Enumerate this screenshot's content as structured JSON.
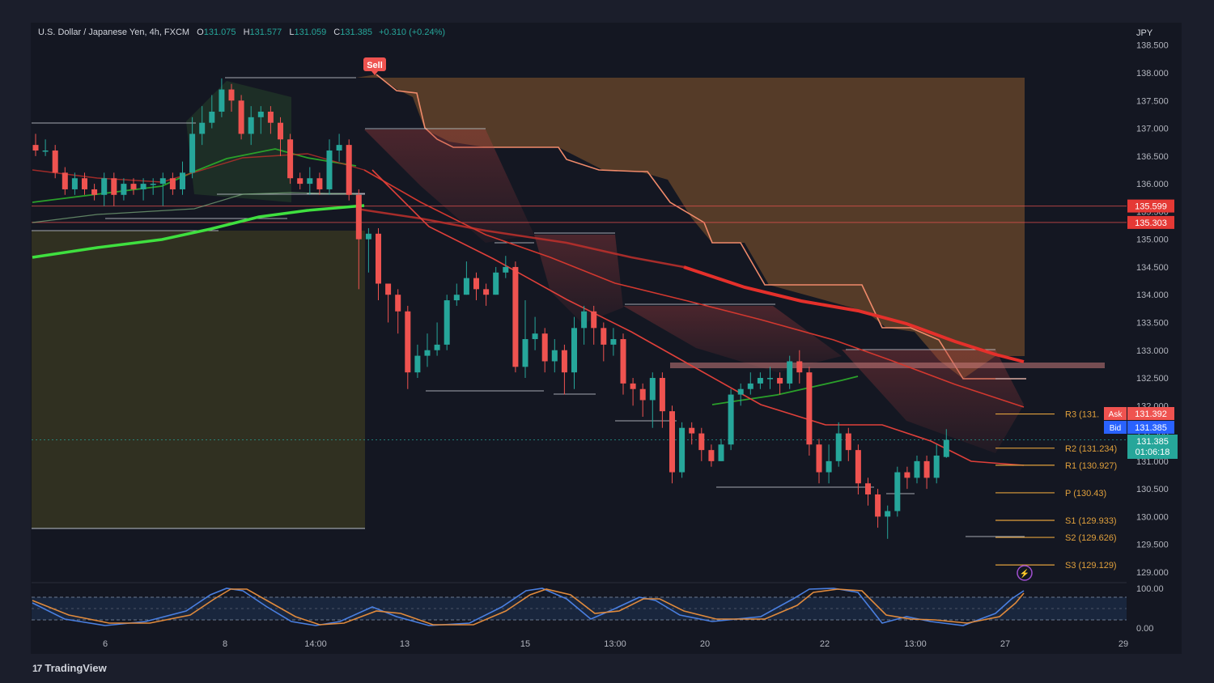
{
  "header": {
    "symbol": "U.S. Dollar / Japanese Yen, 4h, FXCM",
    "open_label": "O",
    "open": "131.075",
    "high_label": "H",
    "high": "131.577",
    "low_label": "L",
    "low": "131.059",
    "close_label": "C",
    "close": "131.385",
    "change": "+0.310 (+0.24%)"
  },
  "currency": "JPY",
  "brand": "TradingView",
  "sell_signal": "Sell",
  "price_tags": {
    "level1": "135.599",
    "level2": "135.303",
    "ask_label": "Ask",
    "ask": "131.392",
    "bid_label": "Bid",
    "bid": "131.385",
    "last": "131.385",
    "countdown": "01:06:18"
  },
  "pivots": [
    {
      "label": "R3 (131.",
      "value": 131.85
    },
    {
      "label": "R2 (131.234)",
      "value": 131.234
    },
    {
      "label": "R1 (130.927)",
      "value": 130.927
    },
    {
      "label": "P (130.43)",
      "value": 130.43
    },
    {
      "label": "S1 (129.933)",
      "value": 129.933
    },
    {
      "label": "S2 (129.626)",
      "value": 129.626
    },
    {
      "label": "S3 (129.129)",
      "value": 129.129
    }
  ],
  "colors": {
    "bull": "#26a69a",
    "bear": "#ef5350",
    "ema_green": "#3fe03f",
    "ema_red": "#e5302b",
    "cloud": "#8a5a2e",
    "pivot": "#e0a03c",
    "stoch_blue": "#4a7fe0",
    "stoch_orange": "#e08a3c"
  },
  "chart_data": {
    "type": "candlestick",
    "title": "U.S. Dollar / Japanese Yen, 4h, FXCM",
    "y_unit": "JPY",
    "ylim": [
      128.6,
      138.7
    ],
    "y_ticks": [
      "138.500",
      "138.000",
      "137.500",
      "137.000",
      "136.500",
      "136.000",
      "135.500",
      "135.000",
      "134.500",
      "134.000",
      "133.500",
      "133.000",
      "132.500",
      "132.000",
      "131.500",
      "131.000",
      "130.500",
      "130.000",
      "129.500",
      "129.000"
    ],
    "x_ticks": [
      "6",
      "8",
      "14:00",
      "13",
      "15",
      "13:00",
      "20",
      "22",
      "13:00",
      "27",
      "29"
    ],
    "candles": [
      [
        136.7,
        136.6,
        136.9,
        136.5
      ],
      [
        136.6,
        136.6,
        136.8,
        136.5
      ],
      [
        136.6,
        136.2,
        136.7,
        136.1
      ],
      [
        136.2,
        135.9,
        136.3,
        135.8
      ],
      [
        135.9,
        136.1,
        136.2,
        135.8
      ],
      [
        136.1,
        135.9,
        136.2,
        135.8
      ],
      [
        135.9,
        135.8,
        136.0,
        135.7
      ],
      [
        135.8,
        136.1,
        136.2,
        135.6
      ],
      [
        136.1,
        135.8,
        136.2,
        135.6
      ],
      [
        135.8,
        136.0,
        136.1,
        135.7
      ],
      [
        136.0,
        135.9,
        136.1,
        135.8
      ],
      [
        135.9,
        136.0,
        136.1,
        135.7
      ],
      [
        136.0,
        136.0,
        136.1,
        135.8
      ],
      [
        136.0,
        136.1,
        136.2,
        135.6
      ],
      [
        136.1,
        135.9,
        136.2,
        135.8
      ],
      [
        135.9,
        136.2,
        136.4,
        135.8
      ],
      [
        136.2,
        136.9,
        137.2,
        136.1
      ],
      [
        136.9,
        137.1,
        137.4,
        136.7
      ],
      [
        137.1,
        137.3,
        137.6,
        137.0
      ],
      [
        137.3,
        137.7,
        137.9,
        137.2
      ],
      [
        137.7,
        137.5,
        137.8,
        137.3
      ],
      [
        137.5,
        136.9,
        137.6,
        136.8
      ],
      [
        136.9,
        137.2,
        137.4,
        136.7
      ],
      [
        137.2,
        137.3,
        137.4,
        136.9
      ],
      [
        137.3,
        137.1,
        137.4,
        136.9
      ],
      [
        137.1,
        136.8,
        137.2,
        136.5
      ],
      [
        136.8,
        136.1,
        136.9,
        136.0
      ],
      [
        136.1,
        136.0,
        136.2,
        135.9
      ],
      [
        136.0,
        136.1,
        136.3,
        135.8
      ],
      [
        136.1,
        135.9,
        136.2,
        135.8
      ],
      [
        135.9,
        136.6,
        136.8,
        135.8
      ],
      [
        136.6,
        136.7,
        136.9,
        136.4
      ],
      [
        136.7,
        135.8,
        136.8,
        135.7
      ],
      [
        135.8,
        135.0,
        135.9,
        134.1
      ],
      [
        135.0,
        135.1,
        135.2,
        134.4
      ],
      [
        135.1,
        134.2,
        135.2,
        133.9
      ],
      [
        134.2,
        134.0,
        134.2,
        133.5
      ],
      [
        134.0,
        133.7,
        134.1,
        133.3
      ],
      [
        133.7,
        132.6,
        133.8,
        132.3
      ],
      [
        132.6,
        132.9,
        133.1,
        132.5
      ],
      [
        132.9,
        133.0,
        133.3,
        132.7
      ],
      [
        133.0,
        133.1,
        133.5,
        132.9
      ],
      [
        133.1,
        133.9,
        134.0,
        133.0
      ],
      [
        133.9,
        134.0,
        134.2,
        133.8
      ],
      [
        134.0,
        134.3,
        134.6,
        134.0
      ],
      [
        134.3,
        134.1,
        134.4,
        133.9
      ],
      [
        134.1,
        134.0,
        134.2,
        133.8
      ],
      [
        134.0,
        134.4,
        134.5,
        134.0
      ],
      [
        134.4,
        134.5,
        134.7,
        134.3
      ],
      [
        134.5,
        132.7,
        134.6,
        132.6
      ],
      [
        132.7,
        133.2,
        133.9,
        132.5
      ],
      [
        133.2,
        133.3,
        133.6,
        133.0
      ],
      [
        133.3,
        132.8,
        133.4,
        132.6
      ],
      [
        132.8,
        133.0,
        133.2,
        132.6
      ],
      [
        133.0,
        132.6,
        133.1,
        132.2
      ],
      [
        132.6,
        133.4,
        133.6,
        132.3
      ],
      [
        133.4,
        133.7,
        133.8,
        133.1
      ],
      [
        133.7,
        133.4,
        133.8,
        133.1
      ],
      [
        133.4,
        133.1,
        133.5,
        132.8
      ],
      [
        133.1,
        133.2,
        133.4,
        132.9
      ],
      [
        133.2,
        132.4,
        133.3,
        132.2
      ],
      [
        132.4,
        132.3,
        132.5,
        132.0
      ],
      [
        132.3,
        132.1,
        132.4,
        131.8
      ],
      [
        132.1,
        132.5,
        132.6,
        131.6
      ],
      [
        132.5,
        131.9,
        132.6,
        131.6
      ],
      [
        131.9,
        130.8,
        132.0,
        130.6
      ],
      [
        130.8,
        131.6,
        131.7,
        130.7
      ],
      [
        131.6,
        131.5,
        131.7,
        131.3
      ],
      [
        131.5,
        131.2,
        131.6,
        131.0
      ],
      [
        131.2,
        131.0,
        131.3,
        130.9
      ],
      [
        131.0,
        131.3,
        131.4,
        131.0
      ],
      [
        131.3,
        132.2,
        132.3,
        131.2
      ],
      [
        132.2,
        132.3,
        132.4,
        132.0
      ],
      [
        132.3,
        132.4,
        132.6,
        132.2
      ],
      [
        132.4,
        132.5,
        132.6,
        132.3
      ],
      [
        132.5,
        132.5,
        132.7,
        132.3
      ],
      [
        132.5,
        132.4,
        132.6,
        132.2
      ],
      [
        132.4,
        132.8,
        132.9,
        132.3
      ],
      [
        132.8,
        132.6,
        133.0,
        132.4
      ],
      [
        132.6,
        131.3,
        132.7,
        131.1
      ],
      [
        131.3,
        130.8,
        131.4,
        130.6
      ],
      [
        130.8,
        131.0,
        131.3,
        130.6
      ],
      [
        131.0,
        131.5,
        131.7,
        130.9
      ],
      [
        131.5,
        131.2,
        131.6,
        131.0
      ],
      [
        131.2,
        130.6,
        131.3,
        130.4
      ],
      [
        130.6,
        130.4,
        130.7,
        130.2
      ],
      [
        130.4,
        130.0,
        130.5,
        129.8
      ],
      [
        130.0,
        130.1,
        130.2,
        129.6
      ],
      [
        130.1,
        130.8,
        130.9,
        130.0
      ],
      [
        130.8,
        130.7,
        130.9,
        130.5
      ],
      [
        130.7,
        131.0,
        131.1,
        130.6
      ],
      [
        131.0,
        130.7,
        131.1,
        130.5
      ],
      [
        130.7,
        131.1,
        131.3,
        130.6
      ],
      [
        131.075,
        131.385,
        131.577,
        131.059
      ]
    ],
    "ema_green": [
      [
        40,
        318
      ],
      [
        120,
        306
      ],
      [
        200,
        296
      ],
      [
        260,
        283
      ],
      [
        320,
        268
      ],
      [
        380,
        260
      ],
      [
        450,
        254
      ]
    ],
    "ema_red_thick": [
      [
        845,
        330
      ],
      [
        920,
        355
      ],
      [
        990,
        372
      ],
      [
        1060,
        384
      ],
      [
        1120,
        400
      ],
      [
        1180,
        422
      ],
      [
        1230,
        438
      ],
      [
        1265,
        447
      ]
    ],
    "legend": []
  },
  "stochastic": {
    "levels": [
      "100.00",
      "0.00"
    ]
  }
}
